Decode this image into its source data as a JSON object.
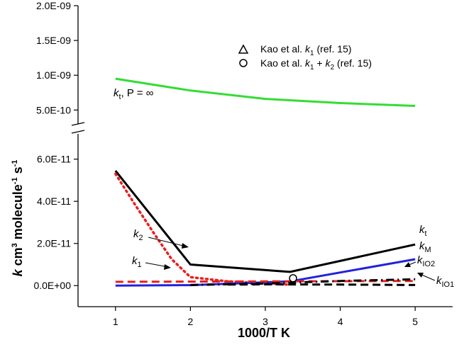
{
  "chart_data": {
    "type": "line",
    "xlabel": "1000/T K",
    "ylabel_parts": {
      "k": "k",
      "unit": " cm",
      "exp3": "3",
      "molecule": " molecule",
      "exp_m1a": "-1",
      "s": " s",
      "exp_m1b": "-1"
    },
    "x_ticks": [
      "1",
      "2",
      "3",
      "4",
      "5"
    ],
    "upper_panel": {
      "ylim": [
        3e-10,
        2e-09
      ],
      "y_ticks": [
        {
          "value": 5e-10,
          "label": "5.0E-10"
        },
        {
          "value": 1e-09,
          "label": "1.0E-09"
        },
        {
          "value": 1.5e-09,
          "label": "1.5E-09"
        },
        {
          "value": 2e-09,
          "label": "2.0E-09"
        }
      ]
    },
    "lower_panel": {
      "ylim": [
        -1e-11,
        7.2e-11
      ],
      "y_ticks": [
        {
          "value": 0,
          "label": "0.0E+00"
        },
        {
          "value": 2e-11,
          "label": "2.0E-11"
        },
        {
          "value": 4e-11,
          "label": "4.0E-11"
        },
        {
          "value": 6e-11,
          "label": "6.0E-11"
        }
      ]
    },
    "series": [
      {
        "name": "k_t, P = ∞",
        "panel": "upper",
        "color": "#33dd33",
        "style": "solid",
        "x": [
          1.0,
          2.0,
          3.0,
          4.0,
          5.0
        ],
        "values": [
          9.5e-10,
          7.8e-10,
          6.6e-10,
          6e-10,
          5.6e-10
        ]
      },
      {
        "name": "k_t",
        "panel": "lower",
        "color": "#000000",
        "style": "solid",
        "x": [
          1.0,
          2.0,
          3.33,
          5.0
        ],
        "values": [
          5.45e-11,
          1e-11,
          6.5e-12,
          1.95e-11
        ]
      },
      {
        "name": "k_2",
        "panel": "lower",
        "color": "#e8201f",
        "style": "dotted",
        "x": [
          1.0,
          1.25,
          1.5,
          1.75,
          2.0,
          2.5,
          3.0,
          3.33
        ],
        "values": [
          5.3e-11,
          3.9e-11,
          2.55e-11,
          1.25e-11,
          4e-12,
          2e-12,
          1e-12,
          5e-13
        ]
      },
      {
        "name": "k_M",
        "panel": "lower",
        "color": "#2222dd",
        "style": "solid",
        "x": [
          1.0,
          2.0,
          3.33,
          5.0
        ],
        "values": [
          0.0,
          2e-13,
          2e-12,
          1.25e-11
        ]
      },
      {
        "name": "k_1",
        "panel": "lower",
        "color": "#e8201f",
        "style": "dashed",
        "x": [
          1.0,
          2.0,
          3.0,
          4.0,
          5.0
        ],
        "values": [
          1.8e-12,
          1.9e-12,
          2e-12,
          2.1e-12,
          2.2e-12
        ]
      },
      {
        "name": "k_IO2",
        "panel": "lower",
        "color": "#000000",
        "style": "dashdot",
        "x": [
          2.0,
          3.0,
          4.0,
          5.0
        ],
        "values": [
          3e-13,
          1e-12,
          2.2e-12,
          3e-12
        ]
      },
      {
        "name": "k_IO1",
        "panel": "lower",
        "color": "#000000",
        "style": "dashed",
        "x": [
          2.5,
          3.0,
          4.0,
          5.0
        ],
        "values": [
          5e-13,
          6e-13,
          5e-13,
          3e-13
        ]
      }
    ],
    "kao_points": [
      {
        "name": "Kao et al. k1 + k2 (ref. 15)",
        "marker": "circle",
        "x": 3.37,
        "value": 3.5e-12
      }
    ],
    "legend": [
      {
        "marker": "triangle",
        "pre": "Kao et al. ",
        "k": "k",
        "sub1": "1",
        "mid": "",
        "sub2": "",
        "post": " (ref. 15)"
      },
      {
        "marker": "circle",
        "pre": "Kao et al. ",
        "k": "k",
        "sub1": "1",
        "mid": " + ",
        "sub2": "2",
        "post": " (ref. 15)"
      }
    ],
    "annotations": {
      "kt_inf": {
        "k": "k",
        "sub": "t",
        "rest": ", P = ∞"
      },
      "k2": {
        "k": "k",
        "sub": "2"
      },
      "k1": {
        "k": "k",
        "sub": "1"
      },
      "kt": {
        "k": "k",
        "sub": "t"
      },
      "kM": {
        "k": "k",
        "sub": "M"
      },
      "kIO2": {
        "k": "k",
        "sub": "IO2"
      },
      "kIO1": {
        "k": "k",
        "sub": "IO1"
      }
    }
  }
}
